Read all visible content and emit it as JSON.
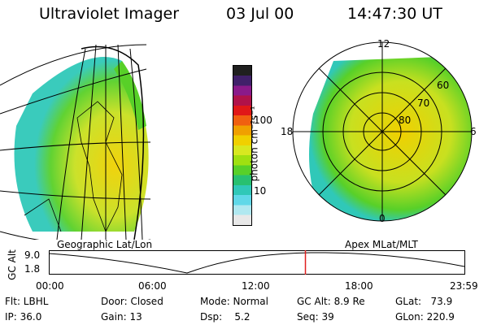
{
  "header": {
    "title": "Ultraviolet Imager",
    "date": "03 Jul 00",
    "time": "14:47:30 UT"
  },
  "colorbar": {
    "label": "photon cm⁻²s⁻¹",
    "ticks": [
      "100",
      "10"
    ],
    "colors": [
      "#202020",
      "#40206a",
      "#8a1a8a",
      "#b0124a",
      "#e01818",
      "#f06010",
      "#f0a000",
      "#f0d000",
      "#d8e820",
      "#a0e010",
      "#58d028",
      "#28c070",
      "#30c8b8",
      "#60d8e8",
      "#b0e8f0",
      "#e8e8e8"
    ]
  },
  "panels": {
    "left_label": "Geographic Lat/Lon",
    "right_label": "Apex MLat/MLT",
    "polar": {
      "mlt_labels": [
        "12",
        "18",
        "6",
        "0"
      ],
      "lat_labels": [
        "60",
        "70",
        "80"
      ]
    }
  },
  "timeline": {
    "ylabel": "GC Alt",
    "yticks": [
      "9.0",
      "1.8"
    ],
    "xticks": [
      "00:00",
      "06:00",
      "12:00",
      "18:00",
      "23:59"
    ],
    "marker_time_hours": 14.79
  },
  "info": {
    "flt": "Flt: LBHL",
    "ip": "IP: 36.0",
    "door": "Door: Closed",
    "gain": "Gain: 13",
    "mode": "Mode: Normal",
    "dsp": "Dsp:    5.2",
    "gcalt": "GC Alt: 8.9 Re",
    "seq": "Seq: 39",
    "glat": "GLat:   73.9",
    "glon": "GLon: 220.9"
  }
}
